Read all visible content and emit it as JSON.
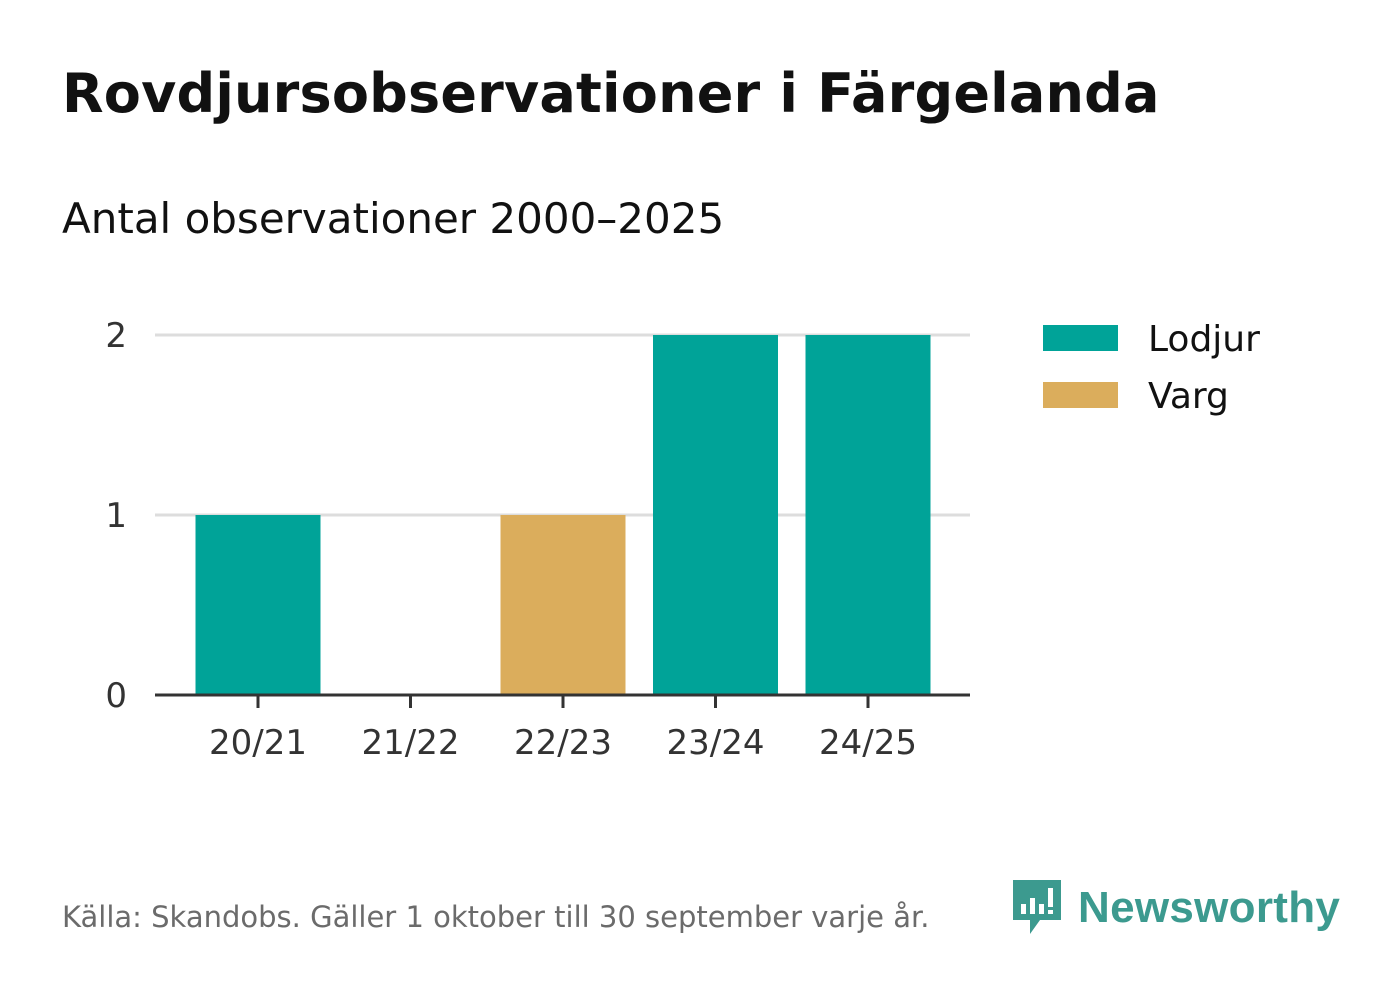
{
  "header": {
    "title": "Rovdjursobservationer i Färgelanda",
    "subtitle": "Antal observationer 2000–2025"
  },
  "footer": {
    "source": "Källa: Skandobs. Gäller 1 oktober till 30 september varje år.",
    "brand": "Newsworthy"
  },
  "colors": {
    "lodjur": "#00a398",
    "varg": "#dbad5c",
    "grid": "#dddddd",
    "axis": "#333333",
    "brand": "#3c9a8f"
  },
  "chart_data": {
    "type": "bar",
    "stacked": true,
    "title": "Rovdjursobservationer i Färgelanda",
    "subtitle": "Antal observationer 2000–2025",
    "categories": [
      "20/21",
      "21/22",
      "22/23",
      "23/24",
      "24/25"
    ],
    "series": [
      {
        "name": "Lodjur",
        "color": "#00a398",
        "values": [
          1,
          0,
          0,
          2,
          2
        ]
      },
      {
        "name": "Varg",
        "color": "#dbad5c",
        "values": [
          0,
          0,
          1,
          0,
          0
        ]
      }
    ],
    "yticks": [
      0,
      1,
      2
    ],
    "ylim": [
      0,
      2
    ],
    "xlabel": "",
    "ylabel": "",
    "grid": true,
    "legend_position": "right"
  }
}
